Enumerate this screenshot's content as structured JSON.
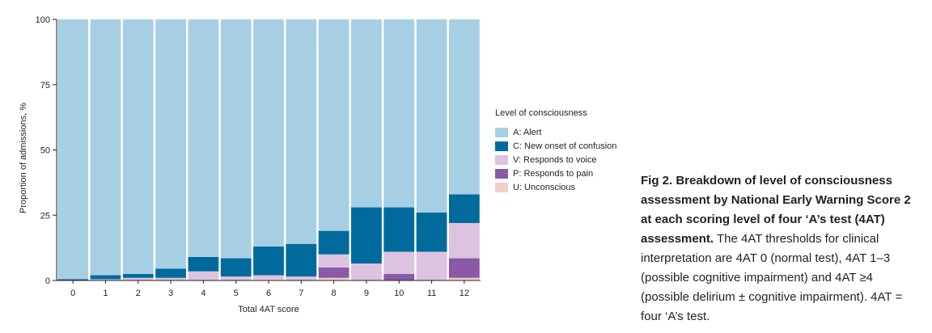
{
  "chart_data": {
    "type": "bar",
    "stacked": true,
    "xlabel": "Total 4AT score",
    "ylabel": "Proportion of admissions, %",
    "ylim": [
      0,
      100
    ],
    "yticks": [
      0,
      25,
      50,
      75,
      100
    ],
    "categories": [
      "0",
      "1",
      "2",
      "3",
      "4",
      "5",
      "6",
      "7",
      "8",
      "9",
      "10",
      "11",
      "12"
    ],
    "legend_position": "right",
    "series": [
      {
        "name": "U: Unconscious",
        "color": "#f2cfc9",
        "values": [
          0.0,
          0.0,
          0.0,
          0.0,
          0.0,
          0.0,
          0.5,
          0.0,
          1.0,
          0.0,
          0.0,
          0.0,
          1.0
        ]
      },
      {
        "name": "P: Responds to pain",
        "color": "#8a5aa6",
        "values": [
          0.0,
          0.0,
          0.0,
          0.0,
          0.0,
          0.0,
          0.0,
          0.0,
          4.0,
          0.0,
          2.5,
          0.0,
          7.5
        ]
      },
      {
        "name": "V: Responds to voice",
        "color": "#dcc3df",
        "values": [
          0.0,
          0.5,
          1.0,
          1.0,
          3.5,
          1.5,
          1.5,
          1.5,
          5.0,
          6.5,
          8.5,
          11.0,
          13.5
        ]
      },
      {
        "name": "C: New onset of confusion",
        "color": "#006a9c",
        "values": [
          0.5,
          1.5,
          1.5,
          3.5,
          5.5,
          7.0,
          11.0,
          12.5,
          9.0,
          21.5,
          17.0,
          15.0,
          11.0
        ]
      },
      {
        "name": "A: Alert",
        "color": "#a7cfe3",
        "values": [
          99.5,
          98.0,
          97.5,
          95.5,
          91.0,
          91.5,
          87.0,
          86.0,
          81.0,
          72.0,
          72.0,
          74.0,
          67.0
        ]
      }
    ]
  },
  "legend": {
    "title": "Level of consciousness",
    "items": [
      {
        "label": "A: Alert",
        "color": "#a7cfe3"
      },
      {
        "label": "C: New onset of confusion",
        "color": "#006a9c"
      },
      {
        "label": "V: Responds to voice",
        "color": "#dcc3df"
      },
      {
        "label": "P: Responds to pain",
        "color": "#8a5aa6"
      },
      {
        "label": "U: Unconscious",
        "color": "#f2cfc9"
      }
    ]
  },
  "caption": {
    "bold": "Fig 2. Breakdown of level of consciousness assessment by National Early Warning Score 2 at each scoring level of four ‘A’s test (4AT) assessment.",
    "text": " The 4AT thresholds for clinical interpretation are 4AT 0 (normal test), 4AT 1–3 (possible cognitive impairment) and 4AT ≥4 (possible delirium ± cognitive impairment). 4AT = four ‘A’s test."
  }
}
